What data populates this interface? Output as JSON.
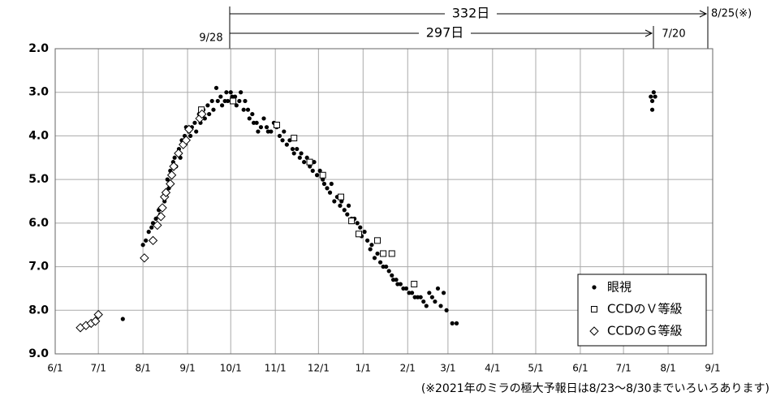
{
  "chart_data": {
    "type": "scatter",
    "annotations": [
      "332日",
      "297日",
      "9/28",
      "7/20",
      "8/25(※)"
    ],
    "footnote": "(※2021年のミラの極大予報日は8/23～8/30までいろいろあります)",
    "xlim": [
      0,
      457
    ],
    "xticks": [
      {
        "value": 0,
        "label": "6/1"
      },
      {
        "value": 30,
        "label": "7/1"
      },
      {
        "value": 61,
        "label": "8/1"
      },
      {
        "value": 92,
        "label": "9/1"
      },
      {
        "value": 122,
        "label": "10/1"
      },
      {
        "value": 153,
        "label": "11/1"
      },
      {
        "value": 183,
        "label": "12/1"
      },
      {
        "value": 214,
        "label": "1/1"
      },
      {
        "value": 245,
        "label": "2/1"
      },
      {
        "value": 273,
        "label": "3/1"
      },
      {
        "value": 304,
        "label": "4/1"
      },
      {
        "value": 334,
        "label": "5/1"
      },
      {
        "value": 365,
        "label": "6/1"
      },
      {
        "value": 395,
        "label": "7/1"
      },
      {
        "value": 426,
        "label": "8/1"
      },
      {
        "value": 457,
        "label": "9/1"
      }
    ],
    "ylim": [
      9,
      2
    ],
    "yticks": [
      {
        "value": 2,
        "label": "2.0"
      },
      {
        "value": 3,
        "label": "3.0"
      },
      {
        "value": 4,
        "label": "4.0"
      },
      {
        "value": 5,
        "label": "5.0"
      },
      {
        "value": 6,
        "label": "6.0"
      },
      {
        "value": 7,
        "label": "7.0"
      },
      {
        "value": 8,
        "label": "8.0"
      },
      {
        "value": 9,
        "label": "9.0"
      }
    ],
    "grid": true,
    "legend": "lower right",
    "series": [
      {
        "name": "眼視",
        "marker": "circle",
        "color": "#000000",
        "x": [
          47,
          61,
          63,
          65,
          67,
          68,
          70,
          72,
          73,
          75,
          76,
          78,
          79,
          80,
          82,
          83,
          84,
          86,
          87,
          88,
          89,
          90,
          91,
          93,
          94,
          95,
          97,
          98,
          100,
          101,
          103,
          104,
          106,
          107,
          109,
          110,
          112,
          113,
          115,
          116,
          118,
          119,
          120,
          122,
          123,
          125,
          126,
          128,
          129,
          131,
          132,
          134,
          135,
          137,
          138,
          140,
          141,
          143,
          145,
          147,
          148,
          150,
          152,
          154,
          156,
          158,
          159,
          161,
          163,
          165,
          166,
          168,
          170,
          171,
          173,
          175,
          177,
          179,
          180,
          182,
          184,
          186,
          187,
          189,
          191,
          192,
          194,
          196,
          198,
          199,
          201,
          203,
          204,
          206,
          208,
          210,
          212,
          213,
          215,
          217,
          219,
          220,
          222,
          224,
          226,
          228,
          230,
          232,
          234,
          235,
          237,
          238,
          240,
          242,
          244,
          246,
          248,
          250,
          252,
          254,
          256,
          258,
          260,
          262,
          264,
          266,
          268,
          270,
          272,
          276,
          279,
          414,
          415,
          416,
          417,
          415
        ],
        "values": [
          8.2,
          6.5,
          6.4,
          6.2,
          6.1,
          6.0,
          5.9,
          5.7,
          5.8,
          5.4,
          5.5,
          5.0,
          5.2,
          4.8,
          4.6,
          4.5,
          4.7,
          4.3,
          4.5,
          4.1,
          4.2,
          4.0,
          3.8,
          3.9,
          4.0,
          3.8,
          3.7,
          3.9,
          3.5,
          3.7,
          3.4,
          3.6,
          3.3,
          3.5,
          3.2,
          3.4,
          2.9,
          3.2,
          3.1,
          3.3,
          3.2,
          3.0,
          3.2,
          3.0,
          3.1,
          3.1,
          3.3,
          3.2,
          3.0,
          3.4,
          3.2,
          3.4,
          3.6,
          3.5,
          3.7,
          3.7,
          3.9,
          3.8,
          3.6,
          3.8,
          3.9,
          3.9,
          3.7,
          3.8,
          4.0,
          4.1,
          3.9,
          4.2,
          4.1,
          4.3,
          4.4,
          4.3,
          4.5,
          4.4,
          4.6,
          4.5,
          4.7,
          4.8,
          4.6,
          4.9,
          4.8,
          5.0,
          5.1,
          5.2,
          5.3,
          5.1,
          5.5,
          5.4,
          5.6,
          5.5,
          5.7,
          5.8,
          5.6,
          5.9,
          5.9,
          6.0,
          6.1,
          6.3,
          6.2,
          6.4,
          6.6,
          6.5,
          6.8,
          6.7,
          6.9,
          7.0,
          7.0,
          7.1,
          7.2,
          7.3,
          7.3,
          7.4,
          7.4,
          7.5,
          7.5,
          7.6,
          7.6,
          7.7,
          7.7,
          7.7,
          7.8,
          7.9,
          7.6,
          7.7,
          7.8,
          7.5,
          7.9,
          7.6,
          8.0,
          8.3,
          8.3,
          3.1,
          3.2,
          3.0,
          3.1,
          3.4
        ]
      },
      {
        "name": "CCDのＶ等級",
        "marker": "square",
        "color": "#000000",
        "x": [
          101.6,
          123.6,
          154,
          166,
          176.9,
          186,
          198.6,
          206,
          211,
          224,
          228,
          234,
          249.5
        ],
        "values": [
          3.4,
          3.2,
          3.75,
          4.05,
          4.6,
          4.9,
          5.4,
          5.95,
          6.25,
          6.4,
          6.7,
          6.7,
          7.4
        ]
      },
      {
        "name": "CCDのＧ等級",
        "marker": "diamond",
        "color": "#000000",
        "x": [
          17.5,
          21.4,
          25,
          28,
          30,
          62,
          68,
          71,
          73.5,
          74.5,
          76,
          77,
          80,
          81,
          82.4,
          85.7,
          89,
          91,
          93,
          100.5,
          102
        ],
        "values": [
          8.4,
          8.35,
          8.3,
          8.25,
          8.1,
          6.8,
          6.4,
          6.05,
          5.85,
          5.65,
          5.4,
          5.3,
          5.1,
          4.9,
          4.7,
          4.4,
          4.2,
          4.1,
          3.85,
          3.6,
          3.5
        ]
      }
    ]
  }
}
